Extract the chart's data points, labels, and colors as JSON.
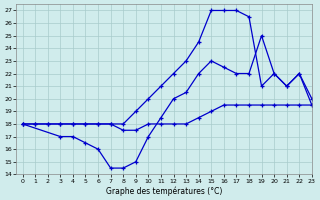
{
  "title": "Graphe des températures (°C)",
  "bg_color": "#d0ecec",
  "grid_color": "#a8cccc",
  "line_color": "#0000cc",
  "xlim": [
    -0.5,
    23
  ],
  "ylim": [
    14,
    27.5
  ],
  "yticks": [
    14,
    15,
    16,
    17,
    18,
    19,
    20,
    21,
    22,
    23,
    24,
    25,
    26,
    27
  ],
  "xticks": [
    0,
    1,
    2,
    3,
    4,
    5,
    6,
    7,
    8,
    9,
    10,
    11,
    12,
    13,
    14,
    15,
    16,
    17,
    18,
    19,
    20,
    21,
    22,
    23
  ],
  "line1_x": [
    0,
    1,
    2,
    3,
    4,
    5,
    6,
    7,
    8,
    9,
    10,
    11,
    12,
    13,
    14,
    15,
    16,
    17,
    18,
    19,
    20,
    21,
    22,
    23
  ],
  "line1_y": [
    18,
    18,
    18,
    18,
    18,
    18,
    18,
    18,
    18,
    19,
    20,
    21,
    22,
    23,
    24.5,
    27,
    27,
    27,
    26.5,
    21,
    22,
    21,
    22,
    19.5
  ],
  "line2_x": [
    0,
    3,
    4,
    5,
    6,
    7,
    8,
    9,
    10,
    11,
    12,
    13,
    14,
    15,
    16,
    17,
    18,
    19,
    20,
    21,
    22,
    23
  ],
  "line2_y": [
    18,
    17,
    17,
    16.5,
    16,
    14.5,
    14.5,
    15,
    17,
    18.5,
    20,
    20.5,
    22,
    23,
    22.5,
    22,
    22,
    25,
    22,
    21,
    22,
    20
  ],
  "line3_x": [
    0,
    1,
    2,
    3,
    4,
    5,
    6,
    7,
    8,
    9,
    10,
    11,
    12,
    13,
    14,
    15,
    16,
    17,
    18,
    19,
    20,
    21,
    22,
    23
  ],
  "line3_y": [
    18,
    18,
    18,
    18,
    18,
    18,
    18,
    18,
    17.5,
    17.5,
    18,
    18,
    18,
    18,
    18.5,
    19,
    19.5,
    19.5,
    19.5,
    19.5,
    19.5,
    19.5,
    19.5,
    19.5
  ]
}
